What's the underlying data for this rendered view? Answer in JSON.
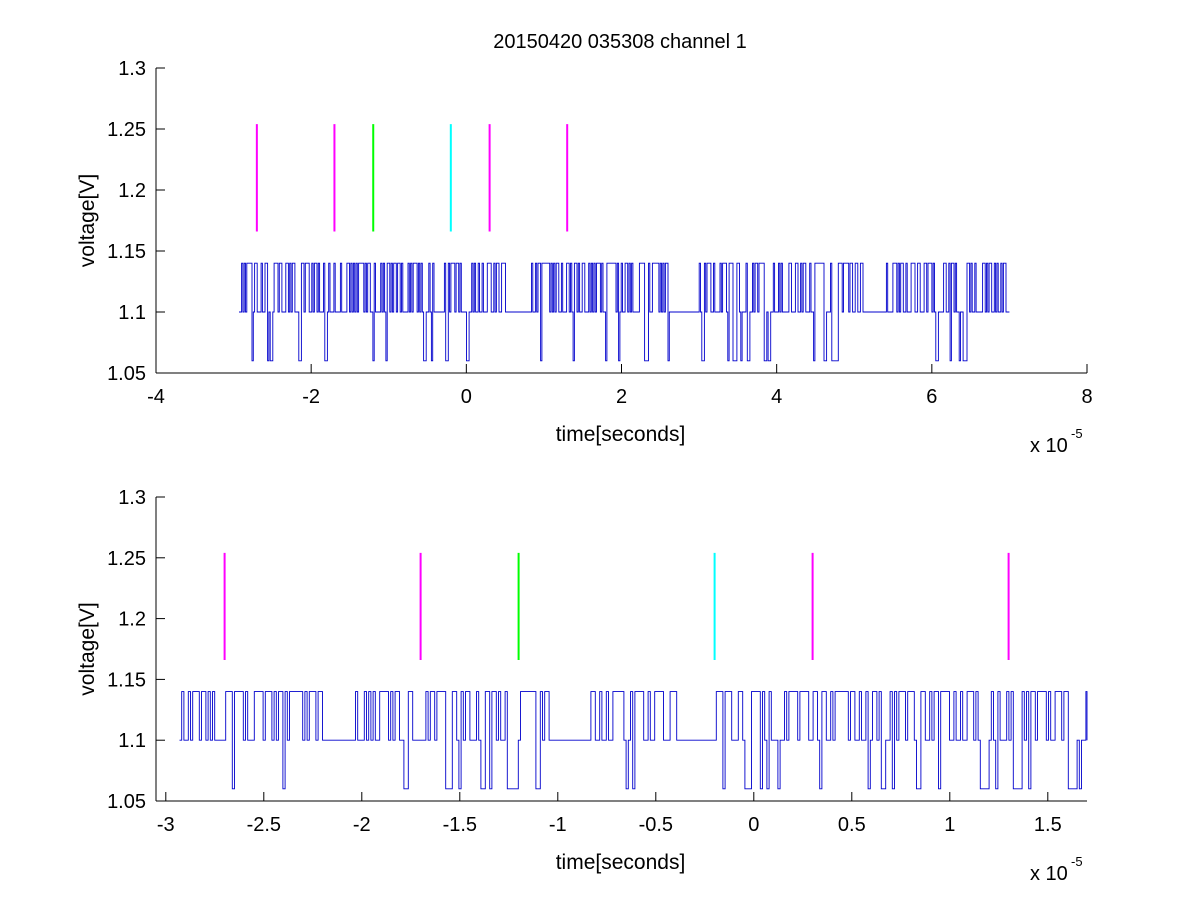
{
  "figure_title": "20150420 035308 channel 1",
  "chart_data": [
    {
      "type": "line",
      "title": "20150420 035308 channel 1",
      "xlabel": "time[seconds]",
      "ylabel": "voltage[V]",
      "x_multiplier_label": "x 10",
      "x_multiplier_exponent": "-5",
      "xlim": [
        -4,
        8
      ],
      "ylim": [
        1.05,
        1.3
      ],
      "xticks": [
        -4,
        -2,
        0,
        2,
        4,
        6,
        8
      ],
      "xtick_labels": [
        "-4",
        "-2",
        "0",
        "2",
        "4",
        "6",
        "8"
      ],
      "yticks": [
        1.05,
        1.1,
        1.15,
        1.2,
        1.25,
        1.3
      ],
      "ytick_labels": [
        "1.05",
        "1.1",
        "1.15",
        "1.2",
        "1.25",
        "1.3"
      ],
      "grid": false,
      "signal": {
        "color": "#0000cc",
        "x_range": [
          -2.93,
          7.0
        ],
        "baseline": 1.1,
        "high_level": 1.14,
        "low_level": 1.06,
        "quiet_intervals": [
          [
            0.5,
            0.8
          ],
          [
            2.6,
            3.0
          ],
          [
            5.2,
            5.4
          ]
        ]
      },
      "markers": [
        {
          "x": -2.7,
          "y_range": [
            1.166,
            1.254
          ],
          "color": "#ff00ff"
        },
        {
          "x": -1.7,
          "y_range": [
            1.166,
            1.254
          ],
          "color": "#ff00ff"
        },
        {
          "x": -1.2,
          "y_range": [
            1.166,
            1.254
          ],
          "color": "#00ff00"
        },
        {
          "x": -0.2,
          "y_range": [
            1.166,
            1.254
          ],
          "color": "#00ffff"
        },
        {
          "x": 0.3,
          "y_range": [
            1.166,
            1.254
          ],
          "color": "#ff00ff"
        },
        {
          "x": 1.3,
          "y_range": [
            1.166,
            1.254
          ],
          "color": "#ff00ff"
        }
      ]
    },
    {
      "type": "line",
      "title": "",
      "xlabel": "time[seconds]",
      "ylabel": "voltage[V]",
      "x_multiplier_label": "x 10",
      "x_multiplier_exponent": "-5",
      "xlim": [
        -3.05,
        1.7
      ],
      "ylim": [
        1.05,
        1.3
      ],
      "xticks": [
        -3,
        -2.5,
        -2,
        -1.5,
        -1,
        -0.5,
        0,
        0.5,
        1,
        1.5
      ],
      "xtick_labels": [
        "-3",
        "-2.5",
        "-2",
        "-1.5",
        "-1",
        "-0.5",
        "0",
        "0.5",
        "1",
        "1.5"
      ],
      "yticks": [
        1.05,
        1.1,
        1.15,
        1.2,
        1.25,
        1.3
      ],
      "ytick_labels": [
        "1.05",
        "1.1",
        "1.15",
        "1.2",
        "1.25",
        "1.3"
      ],
      "grid": false,
      "signal": {
        "color": "#0000cc",
        "x_range": [
          -2.93,
          1.7
        ],
        "baseline": 1.1,
        "high_level": 1.14,
        "low_level": 1.06,
        "quiet_intervals": [
          [
            -2.18,
            -2.05
          ],
          [
            -1.05,
            -0.85
          ],
          [
            -0.35,
            -0.2
          ]
        ]
      },
      "markers": [
        {
          "x": -2.7,
          "y_range": [
            1.166,
            1.254
          ],
          "color": "#ff00ff"
        },
        {
          "x": -1.7,
          "y_range": [
            1.166,
            1.254
          ],
          "color": "#ff00ff"
        },
        {
          "x": -1.2,
          "y_range": [
            1.166,
            1.254
          ],
          "color": "#00ff00"
        },
        {
          "x": -0.2,
          "y_range": [
            1.166,
            1.254
          ],
          "color": "#00ffff"
        },
        {
          "x": 0.3,
          "y_range": [
            1.166,
            1.254
          ],
          "color": "#ff00ff"
        },
        {
          "x": 1.3,
          "y_range": [
            1.166,
            1.254
          ],
          "color": "#ff00ff"
        }
      ]
    }
  ]
}
